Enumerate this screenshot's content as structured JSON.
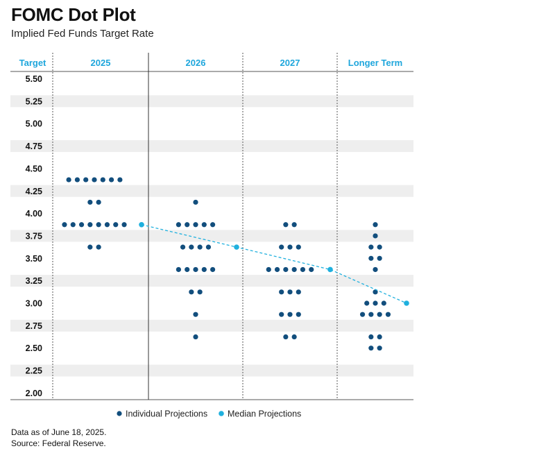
{
  "header": {
    "title": "FOMC Dot Plot",
    "subtitle": "Implied Fed Funds Target Rate"
  },
  "colors": {
    "individual": "#124e7d",
    "median": "#1fb0de",
    "header_text": "#1ea6dc",
    "band": "#eeeeee",
    "axis": "#555555"
  },
  "chart_data": {
    "type": "scatter",
    "title": "FOMC Dot Plot",
    "subtitle": "Implied Fed Funds Target Rate",
    "y_header": "Target",
    "columns": [
      "2025",
      "2026",
      "2027",
      "Longer Term"
    ],
    "y_ticks": [
      "5.50",
      "5.25",
      "5.00",
      "4.75",
      "4.50",
      "4.25",
      "4.00",
      "3.75",
      "3.50",
      "3.25",
      "3.00",
      "2.75",
      "2.50",
      "2.25",
      "2.00"
    ],
    "ylim": [
      2.0,
      5.5
    ],
    "individual_projections": [
      {
        "column": "2025",
        "dots": [
          {
            "y": 4.375,
            "count": 7
          },
          {
            "y": 4.125,
            "count": 2
          },
          {
            "y": 3.875,
            "count": 8
          },
          {
            "y": 3.625,
            "count": 2
          }
        ]
      },
      {
        "column": "2026",
        "dots": [
          {
            "y": 4.125,
            "count": 1
          },
          {
            "y": 3.875,
            "count": 5
          },
          {
            "y": 3.625,
            "count": 4
          },
          {
            "y": 3.375,
            "count": 5
          },
          {
            "y": 3.125,
            "count": 2
          },
          {
            "y": 2.875,
            "count": 1
          },
          {
            "y": 2.625,
            "count": 1
          }
        ]
      },
      {
        "column": "2027",
        "dots": [
          {
            "y": 3.875,
            "count": 2
          },
          {
            "y": 3.625,
            "count": 3
          },
          {
            "y": 3.375,
            "count": 6
          },
          {
            "y": 3.125,
            "count": 3
          },
          {
            "y": 2.875,
            "count": 3
          },
          {
            "y": 2.625,
            "count": 2
          }
        ]
      },
      {
        "column": "Longer Term",
        "dots": [
          {
            "y": 3.875,
            "count": 1
          },
          {
            "y": 3.75,
            "count": 1
          },
          {
            "y": 3.625,
            "count": 2
          },
          {
            "y": 3.5,
            "count": 2
          },
          {
            "y": 3.375,
            "count": 1
          },
          {
            "y": 3.125,
            "count": 1
          },
          {
            "y": 3.0,
            "count": 3
          },
          {
            "y": 2.875,
            "count": 4
          },
          {
            "y": 2.625,
            "count": 2
          },
          {
            "y": 2.5,
            "count": 2
          }
        ]
      }
    ],
    "median_projections": [
      {
        "column": "2025",
        "y": 3.875
      },
      {
        "column": "2026",
        "y": 3.625
      },
      {
        "column": "2027",
        "y": 3.375
      },
      {
        "column": "Longer Term",
        "y": 3.0
      }
    ],
    "legend": [
      "Individual Projections",
      "Median Projections"
    ],
    "legend_position": "bottom"
  },
  "footnotes": {
    "line1": "Data as of June 18, 2025.",
    "line2": "Source: Federal Reserve."
  }
}
